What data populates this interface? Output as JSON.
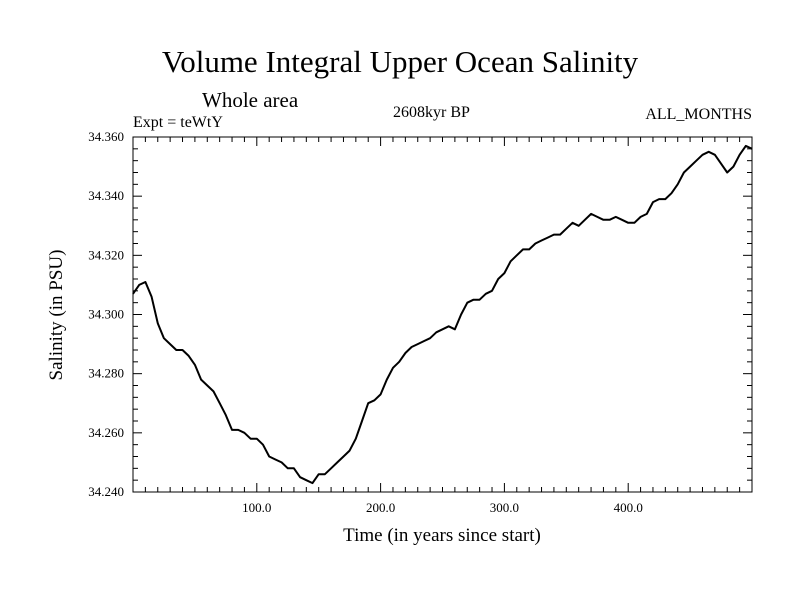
{
  "chart_data": {
    "type": "line",
    "title": "Volume Integral Upper Ocean Salinity",
    "subtitle": "Whole area",
    "experiment_label": "Expt = teWtY",
    "period_label": "2608kyr BP",
    "months_label": "ALL_MONTHS",
    "xlabel": "Time (in years since start)",
    "ylabel": "Salinity (in PSU)",
    "xlim": [
      0,
      500
    ],
    "ylim": [
      34.24,
      34.36
    ],
    "x_ticks": [
      100,
      200,
      300,
      400
    ],
    "x_tick_labels": [
      "100.0",
      "200.0",
      "300.0",
      "400.0"
    ],
    "y_ticks": [
      34.24,
      34.26,
      34.28,
      34.3,
      34.32,
      34.34,
      34.36
    ],
    "y_tick_labels": [
      "34.240",
      "34.260",
      "34.280",
      "34.300",
      "34.320",
      "34.340",
      "34.360"
    ],
    "grid": false,
    "series": [
      {
        "name": "salinity",
        "x": [
          0,
          5,
          10,
          15,
          20,
          25,
          30,
          35,
          40,
          45,
          50,
          55,
          60,
          65,
          70,
          75,
          80,
          85,
          90,
          95,
          100,
          105,
          110,
          115,
          120,
          125,
          130,
          135,
          140,
          145,
          150,
          155,
          160,
          165,
          170,
          175,
          180,
          185,
          190,
          195,
          200,
          205,
          210,
          215,
          220,
          225,
          230,
          235,
          240,
          245,
          250,
          255,
          260,
          265,
          270,
          275,
          280,
          285,
          290,
          295,
          300,
          305,
          310,
          315,
          320,
          325,
          330,
          335,
          340,
          345,
          350,
          355,
          360,
          365,
          370,
          375,
          380,
          385,
          390,
          395,
          400,
          405,
          410,
          415,
          420,
          425,
          430,
          435,
          440,
          445,
          450,
          455,
          460,
          465,
          470,
          475,
          480,
          485,
          490,
          495,
          500
        ],
        "values": [
          34.307,
          34.31,
          34.311,
          34.306,
          34.297,
          34.292,
          34.29,
          34.288,
          34.288,
          34.286,
          34.283,
          34.278,
          34.276,
          34.274,
          34.27,
          34.266,
          34.261,
          34.261,
          34.26,
          34.258,
          34.258,
          34.256,
          34.252,
          34.251,
          34.25,
          34.248,
          34.248,
          34.245,
          34.244,
          34.243,
          34.246,
          34.246,
          34.248,
          34.25,
          34.252,
          34.254,
          34.258,
          34.264,
          34.27,
          34.271,
          34.273,
          34.278,
          34.282,
          34.284,
          34.287,
          34.289,
          34.29,
          34.291,
          34.292,
          34.294,
          34.295,
          34.296,
          34.295,
          34.3,
          34.304,
          34.305,
          34.305,
          34.307,
          34.308,
          34.312,
          34.314,
          34.318,
          34.32,
          34.322,
          34.322,
          34.324,
          34.325,
          34.326,
          34.327,
          34.327,
          34.329,
          34.331,
          34.33,
          34.332,
          34.334,
          34.333,
          34.332,
          34.332,
          34.333,
          34.332,
          34.331,
          34.331,
          34.333,
          34.334,
          34.338,
          34.339,
          34.339,
          34.341,
          34.344,
          34.348,
          34.35,
          34.352,
          34.354,
          34.355,
          34.354,
          34.351,
          34.348,
          34.35,
          34.354,
          34.357,
          34.356
        ]
      }
    ]
  }
}
